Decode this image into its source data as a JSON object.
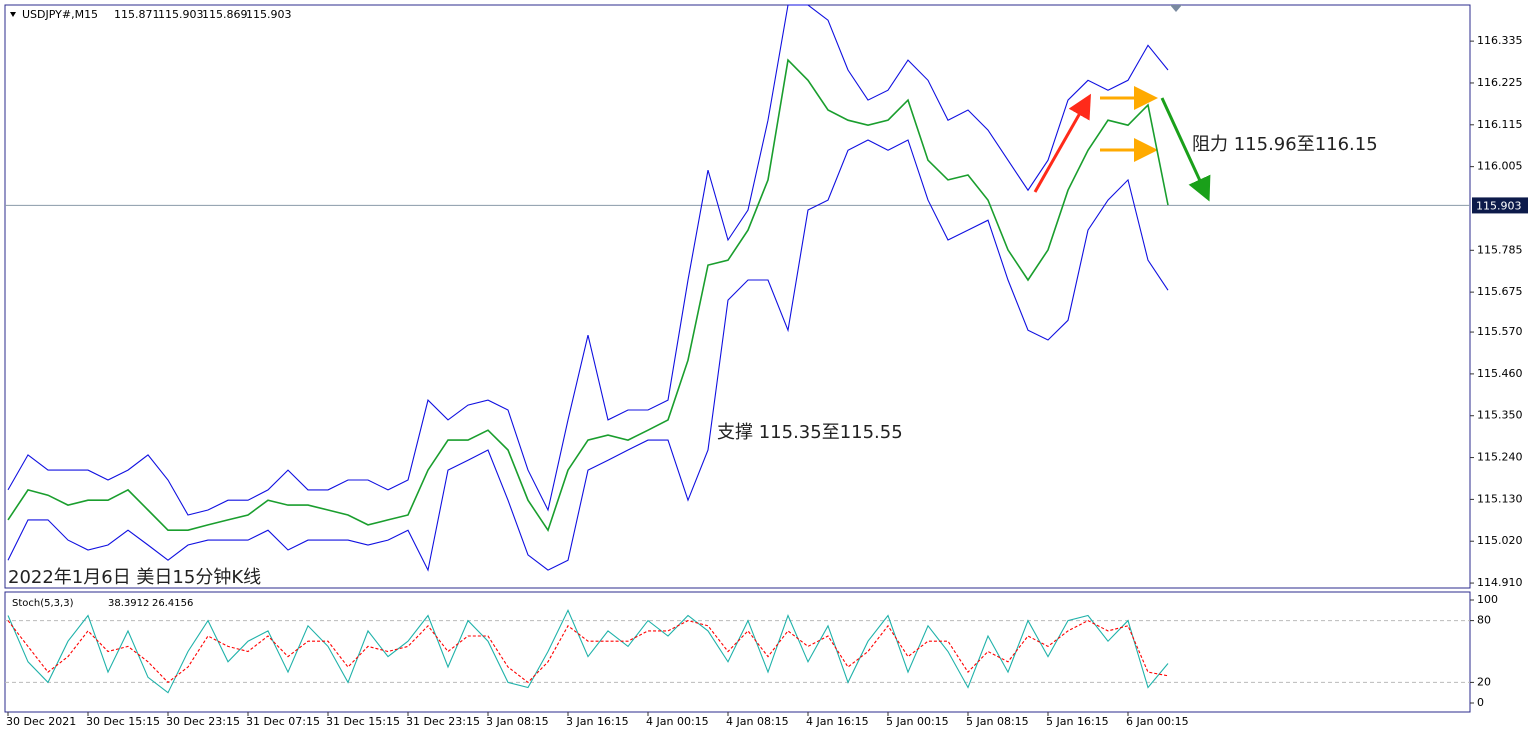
{
  "chart_data": [
    {
      "type": "line",
      "title": "USDJPY#,M15",
      "header_values": [
        115.871,
        115.903,
        115.869,
        115.903
      ],
      "annotations": [
        "支撑 115.35至115.55",
        "阻力 115.96至116.15",
        "2022年1月6日 美日15分钟K线"
      ],
      "current_price": 115.903,
      "ylim": [
        114.897,
        116.43
      ],
      "yticks": [
        116.335,
        116.225,
        116.115,
        116.005,
        115.785,
        115.675,
        {
          "value": 115.57,
          "label": "115.570"
        },
        {
          "value": 115.46,
          "label": "115.460"
        },
        {
          "value": 115.35,
          "label": "115.350"
        },
        {
          "value": 115.24,
          "label": "115.240"
        },
        {
          "value": 115.13,
          "label": "115.130"
        },
        {
          "value": 115.02,
          "label": "115.020"
        },
        {
          "value": 114.91,
          "label": "114.910"
        }
      ],
      "series": [
        {
          "color": "#1a9e2e",
          "values": [
            115.076,
            115.155,
            115.141,
            115.115,
            115.128,
            115.128,
            115.155,
            115.102,
            115.049,
            115.049,
            115.063,
            115.076,
            115.089,
            115.128,
            115.115,
            115.115,
            115.102,
            115.089,
            115.063,
            115.076,
            115.089,
            115.207,
            115.286,
            115.286,
            115.312,
            115.26,
            115.128,
            115.049,
            115.207,
            115.286,
            115.299,
            115.286,
            115.312,
            115.339,
            115.496,
            115.746,
            115.759,
            115.838,
            115.97,
            116.285,
            116.232,
            116.154,
            116.127,
            116.114,
            116.127,
            116.18,
            116.022,
            115.97,
            115.983,
            115.917,
            115.786,
            115.707,
            115.786,
            115.943,
            116.048,
            116.127,
            116.114,
            116.167,
            115.904
          ]
        },
        {
          "color": "#1010e0",
          "values": [
            115.155,
            115.247,
            115.207,
            115.207,
            115.207,
            115.181,
            115.207,
            115.247,
            115.181,
            115.089,
            115.102,
            115.128,
            115.128,
            115.155,
            115.207,
            115.155,
            115.155,
            115.181,
            115.181,
            115.155,
            115.181,
            115.391,
            115.339,
            115.378,
            115.391,
            115.365,
            115.207,
            115.102,
            115.339,
            115.562,
            115.339,
            115.365,
            115.365,
            115.391,
            115.707,
            115.996,
            115.812,
            115.891,
            116.127,
            116.43,
            116.43,
            116.39,
            116.259,
            116.18,
            116.206,
            116.285,
            116.232,
            116.127,
            116.154,
            116.101,
            116.022,
            115.943,
            116.022,
            116.18,
            116.232,
            116.206,
            116.232,
            116.324,
            116.259
          ]
        },
        {
          "color": "#1010e0",
          "values": [
            114.97,
            115.076,
            115.076,
            115.023,
            114.997,
            115.01,
            115.049,
            115.01,
            114.97,
            115.01,
            115.023,
            115.023,
            115.023,
            115.049,
            114.997,
            115.023,
            115.023,
            115.023,
            115.01,
            115.023,
            115.049,
            114.944,
            115.207,
            115.233,
            115.26,
            115.128,
            114.984,
            114.944,
            114.97,
            115.207,
            115.233,
            115.26,
            115.286,
            115.286,
            115.128,
            115.26,
            115.654,
            115.707,
            115.707,
            115.575,
            115.891,
            115.917,
            116.048,
            116.075,
            116.048,
            116.075,
            115.917,
            115.812,
            115.838,
            115.864,
            115.707,
            115.575,
            115.549,
            115.601,
            115.838,
            115.917,
            115.97,
            115.759,
            115.68
          ]
        }
      ]
    },
    {
      "type": "line",
      "title": "Stoch(5,3,3)",
      "header_values": [
        38.3912,
        26.4156
      ],
      "categories": [
        "30 Dec 2021",
        null,
        null,
        null,
        "30 Dec 15:15",
        null,
        null,
        null,
        "30 Dec 23:15",
        null,
        null,
        null,
        "31 Dec 07:15",
        null,
        null,
        null,
        "31 Dec 15:15",
        null,
        null,
        null,
        "31 Dec 23:15",
        null,
        null,
        null,
        "3 Jan 08:15",
        null,
        null,
        null,
        "3 Jan 16:15",
        null,
        null,
        null,
        "4 Jan 00:15",
        null,
        null,
        null,
        "4 Jan 08:15",
        null,
        null,
        null,
        "4 Jan 16:15",
        null,
        null,
        null,
        "5 Jan 00:15",
        null,
        null,
        null,
        "5 Jan 08:15",
        null,
        null,
        null,
        "5 Jan 16:15",
        null,
        null,
        null,
        "6 Jan 00:15",
        null,
        null
      ],
      "ylim": [
        0,
        100
      ],
      "yticks": [
        100,
        80,
        20,
        0
      ],
      "series": [
        {
          "color": "#20b2aa",
          "values": [
            85,
            40,
            20,
            60,
            85,
            30,
            70,
            25,
            10,
            50,
            80,
            40,
            60,
            70,
            30,
            75,
            55,
            20,
            70,
            45,
            60,
            85,
            35,
            80,
            60,
            20,
            15,
            50,
            90,
            45,
            70,
            55,
            80,
            65,
            85,
            70,
            40,
            80,
            30,
            85,
            40,
            75,
            20,
            60,
            85,
            30,
            75,
            50,
            15,
            65,
            30,
            80,
            45,
            80,
            85,
            60,
            80,
            15,
            38.3912
          ]
        },
        {
          "color": "#ff0000",
          "dash": true,
          "values": [
            80,
            55,
            30,
            45,
            70,
            50,
            55,
            40,
            20,
            35,
            65,
            55,
            50,
            65,
            45,
            60,
            60,
            35,
            55,
            50,
            55,
            75,
            50,
            65,
            65,
            35,
            20,
            40,
            75,
            60,
            60,
            60,
            70,
            70,
            80,
            75,
            50,
            70,
            45,
            70,
            55,
            65,
            35,
            50,
            75,
            45,
            60,
            60,
            30,
            50,
            40,
            65,
            55,
            70,
            80,
            70,
            75,
            30,
            26.4156
          ]
        }
      ]
    }
  ]
}
